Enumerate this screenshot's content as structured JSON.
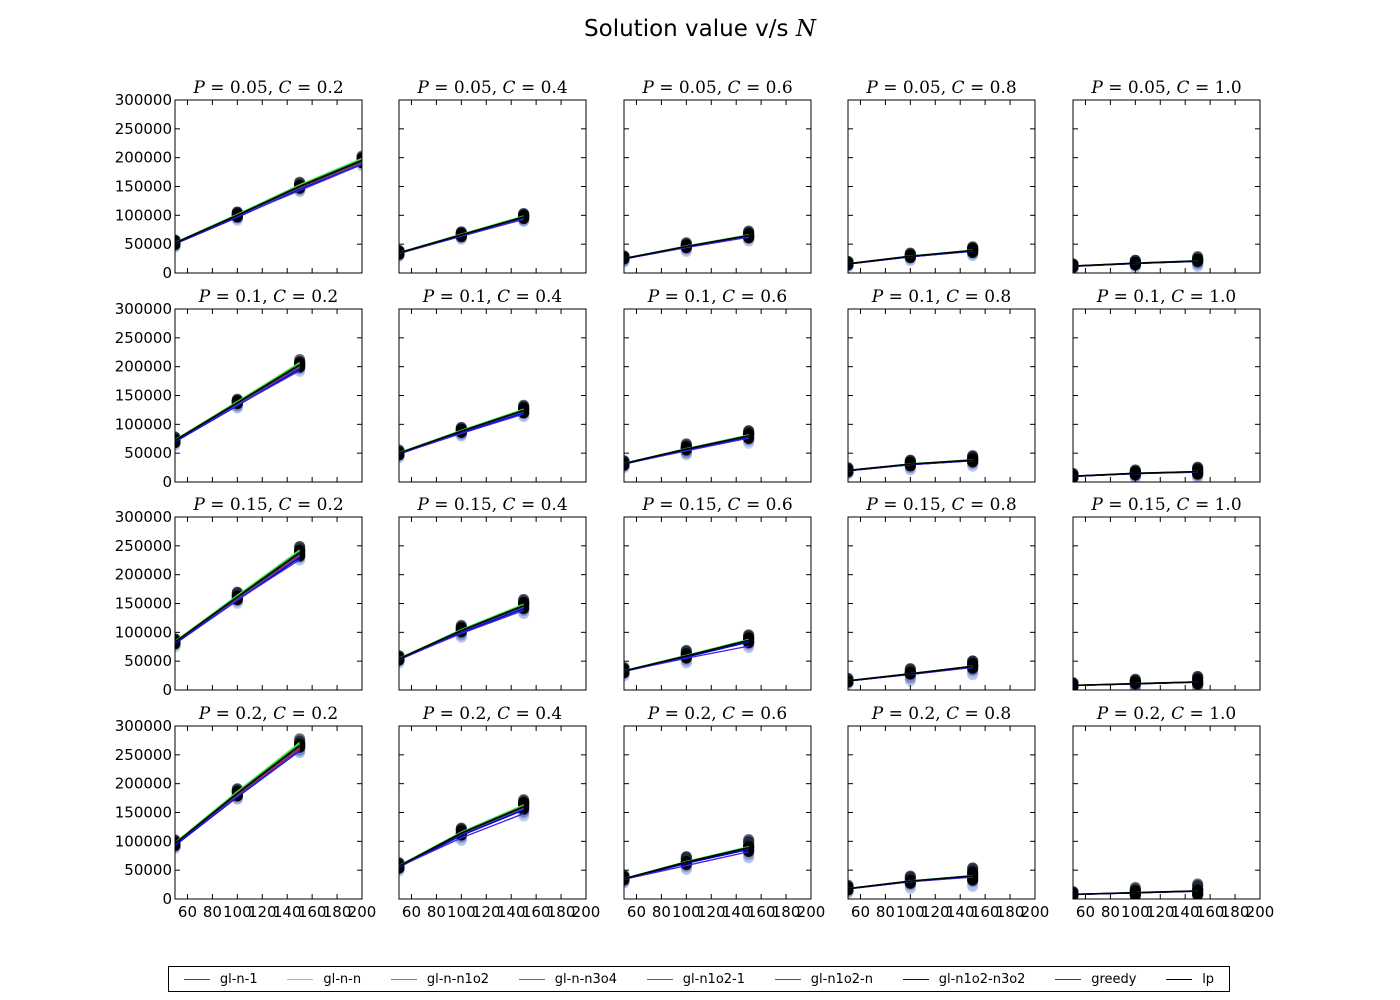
{
  "figure": {
    "title_prefix": "Solution value v/s ",
    "title_var": "N"
  },
  "chart_data": {
    "type": "scatter",
    "rows_P": [
      "0.2",
      "0.15",
      "0.1",
      "0.05"
    ],
    "cols_C": [
      "0.2",
      "0.4",
      "0.6",
      "0.8",
      "1.0"
    ],
    "xlim": [
      50,
      200
    ],
    "ylim": [
      0,
      300000
    ],
    "x_ticks": [
      60,
      80,
      100,
      120,
      140,
      160,
      180,
      200
    ],
    "y_ticks": [
      0,
      50000,
      100000,
      150000,
      200000,
      250000,
      300000
    ],
    "legend": {
      "placement": "bottom",
      "entries": [
        {
          "name": "gl-n-1",
          "color": "#ff0000"
        },
        {
          "name": "gl-n-n",
          "color": "#55ee55"
        },
        {
          "name": "gl-n-n1o2",
          "color": "#22bb22"
        },
        {
          "name": "gl-n-n3o4",
          "color": "#1a9955"
        },
        {
          "name": "gl-n1o2-1",
          "color": "#1a7f80"
        },
        {
          "name": "gl-n1o2-n",
          "color": "#2255cc"
        },
        {
          "name": "gl-n1o2-n3o2",
          "color": "#0000cc"
        },
        {
          "name": "greedy",
          "color": "#4422dd"
        },
        {
          "name": "lp",
          "color": "#000000"
        }
      ]
    },
    "panels": [
      {
        "P": "0.05",
        "C": "0.2",
        "x": [
          50,
          100,
          150,
          200
        ],
        "lp": [
          52000,
          100000,
          150000,
          195000
        ],
        "greedy": [
          51000,
          98000,
          143000,
          188000
        ],
        "spread": [
          8000,
          9000,
          10000,
          10000
        ]
      },
      {
        "P": "0.05",
        "C": "0.4",
        "x": [
          50,
          100,
          150
        ],
        "lp": [
          35000,
          66000,
          97000
        ],
        "greedy": [
          34000,
          64000,
          93000
        ],
        "spread": [
          7000,
          8000,
          9000
        ]
      },
      {
        "P": "0.05",
        "C": "0.6",
        "x": [
          50,
          100,
          150
        ],
        "lp": [
          25000,
          46000,
          65000
        ],
        "greedy": [
          24500,
          44000,
          62000
        ],
        "spread": [
          7000,
          9000,
          11000
        ]
      },
      {
        "P": "0.05",
        "C": "0.8",
        "x": [
          50,
          100,
          150
        ],
        "lp": [
          16000,
          29000,
          39000
        ],
        "greedy": [
          15500,
          28000,
          38000
        ],
        "spread": [
          6000,
          8000,
          10000
        ]
      },
      {
        "P": "0.05",
        "C": "1.0",
        "x": [
          50,
          100,
          150
        ],
        "lp": [
          12000,
          17000,
          21000
        ],
        "greedy": [
          11500,
          16500,
          20000
        ],
        "spread": [
          6000,
          8000,
          10000
        ]
      },
      {
        "P": "0.1",
        "C": "0.2",
        "x": [
          50,
          100,
          150
        ],
        "lp": [
          72000,
          137000,
          203000
        ],
        "greedy": [
          71000,
          133000,
          193000
        ],
        "spread": [
          9000,
          10000,
          12000
        ]
      },
      {
        "P": "0.1",
        "C": "0.4",
        "x": [
          50,
          100,
          150
        ],
        "lp": [
          50000,
          88000,
          124000
        ],
        "greedy": [
          49000,
          84000,
          118000
        ],
        "spread": [
          8000,
          10000,
          12000
        ]
      },
      {
        "P": "0.1",
        "C": "0.6",
        "x": [
          50,
          100,
          150
        ],
        "lp": [
          32000,
          57000,
          80000
        ],
        "greedy": [
          31500,
          54000,
          76000
        ],
        "spread": [
          8000,
          12000,
          14000
        ]
      },
      {
        "P": "0.1",
        "C": "0.8",
        "x": [
          50,
          100,
          150
        ],
        "lp": [
          20000,
          31000,
          38000
        ],
        "greedy": [
          19500,
          30000,
          37000
        ],
        "spread": [
          7000,
          11000,
          12000
        ]
      },
      {
        "P": "0.1",
        "C": "1.0",
        "x": [
          50,
          100,
          150
        ],
        "lp": [
          10000,
          15000,
          18000
        ],
        "greedy": [
          9500,
          14500,
          17000
        ],
        "spread": [
          7000,
          9000,
          12000
        ]
      },
      {
        "P": "0.15",
        "C": "0.2",
        "x": [
          50,
          100,
          150
        ],
        "lp": [
          83000,
          161000,
          238000
        ],
        "greedy": [
          82000,
          156000,
          226000
        ],
        "spread": [
          9000,
          12000,
          15000
        ]
      },
      {
        "P": "0.15",
        "C": "0.4",
        "x": [
          50,
          100,
          150
        ],
        "lp": [
          54000,
          103000,
          146000
        ],
        "greedy": [
          53000,
          98000,
          138000
        ],
        "spread": [
          8000,
          12000,
          15000
        ]
      },
      {
        "P": "0.15",
        "C": "0.6",
        "x": [
          50,
          100,
          150
        ],
        "lp": [
          33000,
          59000,
          86000
        ],
        "greedy": [
          32500,
          55000,
          76000
        ],
        "spread": [
          9000,
          13000,
          14000
        ]
      },
      {
        "P": "0.15",
        "C": "0.8",
        "x": [
          50,
          100,
          150
        ],
        "lp": [
          16000,
          28000,
          41000
        ],
        "greedy": [
          15500,
          27000,
          39000
        ],
        "spread": [
          6000,
          13000,
          15000
        ]
      },
      {
        "P": "0.15",
        "C": "1.0",
        "x": [
          50,
          100,
          150
        ],
        "lp": [
          8000,
          11000,
          14000
        ],
        "greedy": [
          7800,
          10500,
          13500
        ],
        "spread": [
          7000,
          11000,
          15000
        ]
      },
      {
        "P": "0.2",
        "C": "0.2",
        "x": [
          50,
          100,
          150
        ],
        "lp": [
          96000,
          183000,
          266000
        ],
        "greedy": [
          95000,
          178000,
          258000
        ],
        "spread": [
          9000,
          12000,
          15000
        ]
      },
      {
        "P": "0.2",
        "C": "0.4",
        "x": [
          50,
          100,
          150
        ],
        "lp": [
          57000,
          114000,
          160000
        ],
        "greedy": [
          56000,
          106000,
          148000
        ],
        "spread": [
          9000,
          15000,
          18000
        ]
      },
      {
        "P": "0.2",
        "C": "0.6",
        "x": [
          50,
          100,
          150
        ],
        "lp": [
          35000,
          64000,
          89000
        ],
        "greedy": [
          34000,
          58000,
          82000
        ],
        "spread": [
          8000,
          14000,
          20000
        ]
      },
      {
        "P": "0.2",
        "C": "0.8",
        "x": [
          50,
          100,
          150
        ],
        "lp": [
          18000,
          31000,
          40000
        ],
        "greedy": [
          17500,
          30000,
          38000
        ],
        "spread": [
          8000,
          14000,
          20000
        ]
      },
      {
        "P": "0.2",
        "C": "1.0",
        "x": [
          50,
          100,
          150
        ],
        "lp": [
          8000,
          11000,
          14000
        ],
        "greedy": [
          7800,
          10500,
          13500
        ],
        "spread": [
          7000,
          12000,
          16000
        ]
      }
    ]
  }
}
